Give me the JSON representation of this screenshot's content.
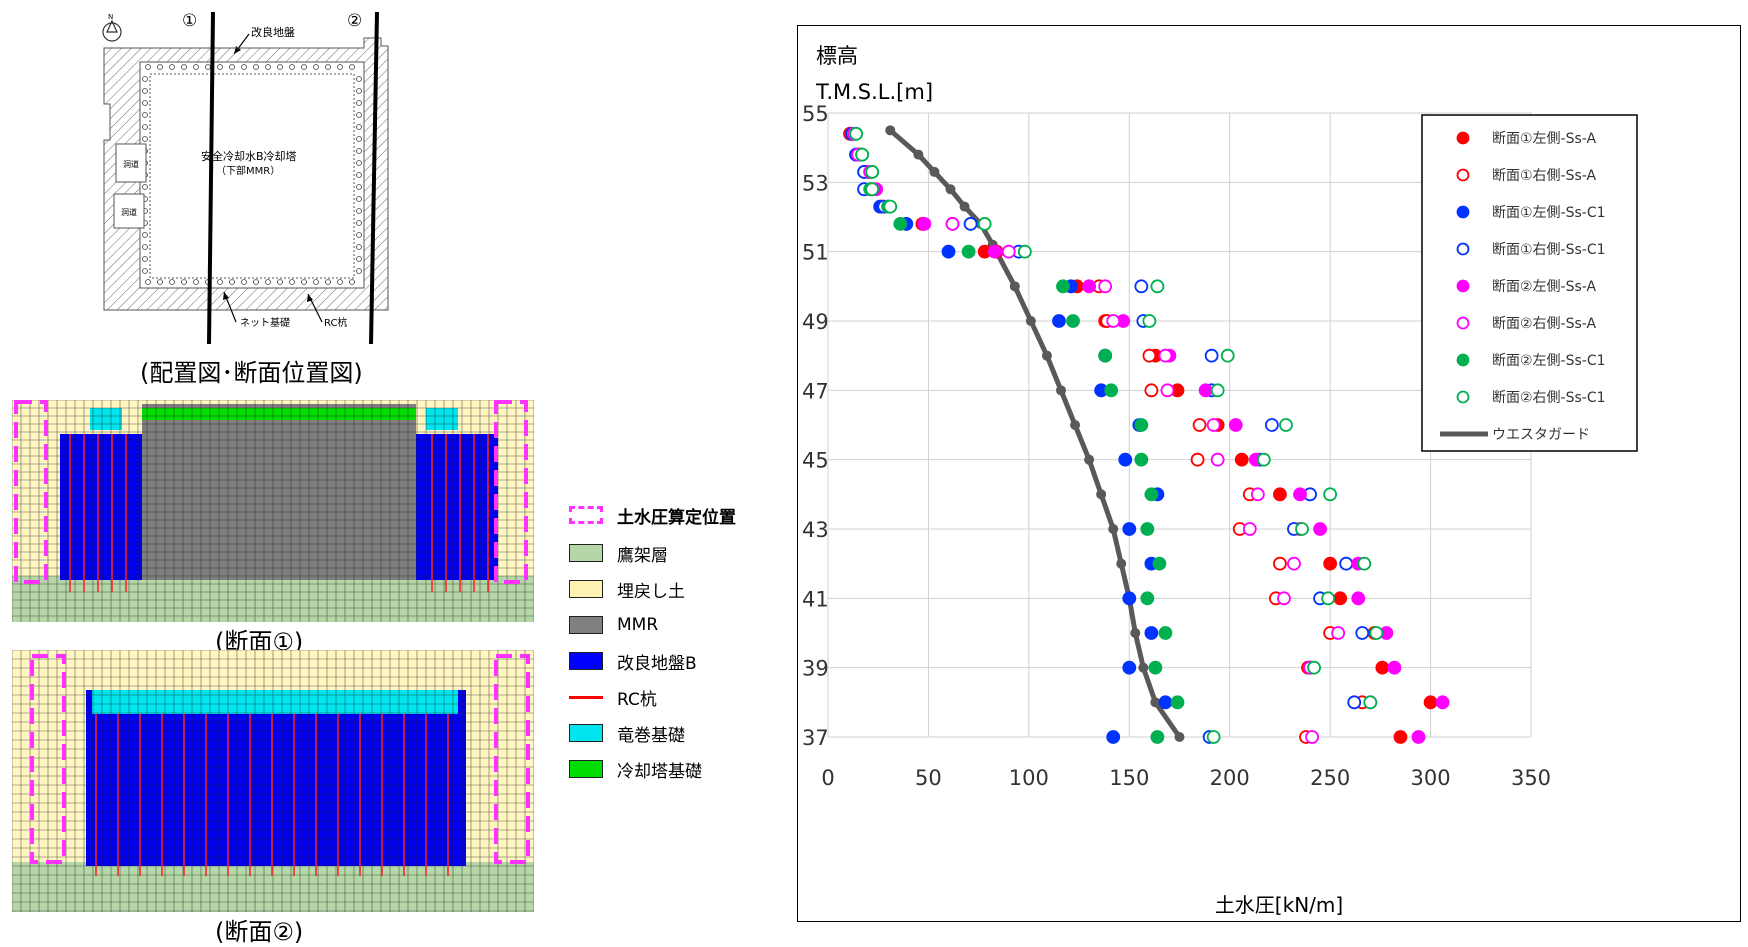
{
  "left_panel": {
    "plan": {
      "north_label": "N",
      "section1_marker": "①",
      "section2_marker": "②",
      "improved_ground_label": "改良地盤",
      "tower_label_line1": "安全冷却水B冷却塔",
      "tower_label_line2": "（下部MMR）",
      "passage_label_1": "洞道",
      "passage_label_2": "洞道",
      "net_foundation_label": "ネット基礎",
      "rc_pile_label": "RC杭",
      "caption": "(配置図･断面位置図)"
    },
    "section1_caption": "(断面①)",
    "section2_caption": "(断面②)",
    "legend": [
      {
        "label": "土水圧算定位置",
        "color": "#ff33ff",
        "kind": "dashed"
      },
      {
        "label": "鷹架層",
        "color": "#b5d6a7",
        "kind": "box"
      },
      {
        "label": "埋戻し土",
        "color": "#fff2b3",
        "kind": "box"
      },
      {
        "label": "MMR",
        "color": "#808080",
        "kind": "box"
      },
      {
        "label": "改良地盤B",
        "color": "#0000ff",
        "kind": "box"
      },
      {
        "label": "RC杭",
        "color": "#ff0000",
        "kind": "line"
      },
      {
        "label": "竜巻基礎",
        "color": "#00e5ee",
        "kind": "box"
      },
      {
        "label": "冷却塔基礎",
        "color": "#00dd00",
        "kind": "box"
      }
    ]
  },
  "chart_data": {
    "type": "scatter",
    "title": "",
    "ylabel_line1": "標高",
    "ylabel_line2": "T.M.S.L.[m]",
    "xlabel": "土水圧[kN/m]",
    "xlim": [
      0,
      350
    ],
    "ylim": [
      37,
      55
    ],
    "xticks": [
      0,
      50,
      100,
      150,
      200,
      250,
      300,
      350
    ],
    "yticks": [
      37,
      39,
      41,
      43,
      45,
      47,
      49,
      51,
      53,
      55
    ],
    "grid": true,
    "legend_position": "top-right",
    "series": [
      {
        "name": "断面①左側-Ss-A",
        "color": "#ff0000",
        "filled": true,
        "points": [
          [
            11,
            54.4
          ],
          [
            16,
            53.8
          ],
          [
            20,
            53.3
          ],
          [
            21,
            52.8
          ],
          [
            26,
            52.3
          ],
          [
            47,
            51.8
          ],
          [
            78,
            51.0
          ],
          [
            124,
            50.0
          ],
          [
            138,
            49.0
          ],
          [
            163,
            48.0
          ],
          [
            174,
            47.0
          ],
          [
            194,
            46.0
          ],
          [
            206,
            45.0
          ],
          [
            225,
            44.0
          ],
          [
            235,
            43.0
          ],
          [
            250,
            42.0
          ],
          [
            255,
            41.0
          ],
          [
            272,
            40.0
          ],
          [
            276,
            39.0
          ],
          [
            300,
            38.0
          ],
          [
            285,
            37.0
          ]
        ]
      },
      {
        "name": "断面①右側-Ss-A",
        "color": "#ff0000",
        "filled": false,
        "points": [
          [
            11,
            54.4
          ],
          [
            16,
            53.8
          ],
          [
            20,
            53.3
          ],
          [
            22,
            52.8
          ],
          [
            27,
            52.3
          ],
          [
            62,
            51.8
          ],
          [
            84,
            51.0
          ],
          [
            135,
            50.0
          ],
          [
            139,
            49.0
          ],
          [
            160,
            48.0
          ],
          [
            161,
            47.0
          ],
          [
            185,
            46.0
          ],
          [
            184,
            45.0
          ],
          [
            210,
            44.0
          ],
          [
            205,
            43.0
          ],
          [
            225,
            42.0
          ],
          [
            223,
            41.0
          ],
          [
            250,
            40.0
          ],
          [
            239,
            39.0
          ],
          [
            266,
            38.0
          ],
          [
            238,
            37.0
          ]
        ]
      },
      {
        "name": "断面①左側-Ss-C1",
        "color": "#0033ff",
        "filled": true,
        "points": [
          [
            12,
            54.4
          ],
          [
            14,
            53.8
          ],
          [
            18,
            53.3
          ],
          [
            18,
            52.8
          ],
          [
            26,
            52.3
          ],
          [
            39,
            51.8
          ],
          [
            60,
            51.0
          ],
          [
            121,
            50.0
          ],
          [
            115,
            49.0
          ],
          [
            138,
            48.0
          ],
          [
            136,
            47.0
          ],
          [
            155,
            46.0
          ],
          [
            148,
            45.0
          ],
          [
            164,
            44.0
          ],
          [
            150,
            43.0
          ],
          [
            161,
            42.0
          ],
          [
            150,
            41.0
          ],
          [
            161,
            40.0
          ],
          [
            150,
            39.0
          ],
          [
            168,
            38.0
          ],
          [
            142,
            37.0
          ]
        ]
      },
      {
        "name": "断面①右側-Ss-C1",
        "color": "#0033ff",
        "filled": false,
        "points": [
          [
            12,
            54.4
          ],
          [
            14,
            53.8
          ],
          [
            18,
            53.3
          ],
          [
            18,
            52.8
          ],
          [
            28,
            52.3
          ],
          [
            71,
            51.8
          ],
          [
            95,
            51.0
          ],
          [
            156,
            50.0
          ],
          [
            157,
            49.0
          ],
          [
            191,
            48.0
          ],
          [
            191,
            47.0
          ],
          [
            221,
            46.0
          ],
          [
            215,
            45.0
          ],
          [
            240,
            44.0
          ],
          [
            232,
            43.0
          ],
          [
            258,
            42.0
          ],
          [
            245,
            41.0
          ],
          [
            266,
            40.0
          ],
          [
            240,
            39.0
          ],
          [
            262,
            38.0
          ],
          [
            190,
            37.0
          ]
        ]
      },
      {
        "name": "断面②左側-Ss-A",
        "color": "#ff00ff",
        "filled": true,
        "points": [
          [
            13,
            54.4
          ],
          [
            15,
            53.8
          ],
          [
            21,
            53.3
          ],
          [
            24,
            52.8
          ],
          [
            30,
            52.3
          ],
          [
            48,
            51.8
          ],
          [
            83,
            51.0
          ],
          [
            130,
            50.0
          ],
          [
            147,
            49.0
          ],
          [
            170,
            48.0
          ],
          [
            188,
            47.0
          ],
          [
            203,
            46.0
          ],
          [
            213,
            45.0
          ],
          [
            235,
            44.0
          ],
          [
            245,
            43.0
          ],
          [
            264,
            42.0
          ],
          [
            264,
            41.0
          ],
          [
            278,
            40.0
          ],
          [
            282,
            39.0
          ],
          [
            306,
            38.0
          ],
          [
            294,
            37.0
          ]
        ]
      },
      {
        "name": "断面②右側-Ss-A",
        "color": "#ff00ff",
        "filled": false,
        "points": [
          [
            13,
            54.4
          ],
          [
            15,
            53.8
          ],
          [
            21,
            53.3
          ],
          [
            22,
            52.8
          ],
          [
            30,
            52.3
          ],
          [
            62,
            51.8
          ],
          [
            90,
            51.0
          ],
          [
            138,
            50.0
          ],
          [
            142,
            49.0
          ],
          [
            168,
            48.0
          ],
          [
            169,
            47.0
          ],
          [
            192,
            46.0
          ],
          [
            194,
            45.0
          ],
          [
            214,
            44.0
          ],
          [
            210,
            43.0
          ],
          [
            232,
            42.0
          ],
          [
            227,
            41.0
          ],
          [
            254,
            40.0
          ],
          [
            240,
            39.0
          ],
          [
            270,
            38.0
          ],
          [
            241,
            37.0
          ]
        ]
      },
      {
        "name": "断面②左側-Ss-C1",
        "color": "#00b050",
        "filled": true,
        "points": [
          [
            14,
            54.4
          ],
          [
            17,
            53.8
          ],
          [
            22,
            53.3
          ],
          [
            21,
            52.8
          ],
          [
            30,
            52.3
          ],
          [
            36,
            51.8
          ],
          [
            70,
            51.0
          ],
          [
            117,
            50.0
          ],
          [
            122,
            49.0
          ],
          [
            138,
            48.0
          ],
          [
            141,
            47.0
          ],
          [
            156,
            46.0
          ],
          [
            156,
            45.0
          ],
          [
            161,
            44.0
          ],
          [
            159,
            43.0
          ],
          [
            165,
            42.0
          ],
          [
            159,
            41.0
          ],
          [
            168,
            40.0
          ],
          [
            163,
            39.0
          ],
          [
            174,
            38.0
          ],
          [
            164,
            37.0
          ]
        ]
      },
      {
        "name": "断面②右側-Ss-C1",
        "color": "#00b050",
        "filled": false,
        "points": [
          [
            14,
            54.4
          ],
          [
            17,
            53.8
          ],
          [
            22,
            53.3
          ],
          [
            22,
            52.8
          ],
          [
            31,
            52.3
          ],
          [
            78,
            51.8
          ],
          [
            98,
            51.0
          ],
          [
            164,
            50.0
          ],
          [
            160,
            49.0
          ],
          [
            199,
            48.0
          ],
          [
            194,
            47.0
          ],
          [
            228,
            46.0
          ],
          [
            217,
            45.0
          ],
          [
            250,
            44.0
          ],
          [
            236,
            43.0
          ],
          [
            267,
            42.0
          ],
          [
            249,
            41.0
          ],
          [
            273,
            40.0
          ],
          [
            242,
            39.0
          ],
          [
            270,
            38.0
          ],
          [
            192,
            37.0
          ]
        ]
      }
    ],
    "line_series": {
      "name": "ウエスタガード",
      "color": "#595959",
      "points": [
        [
          31,
          54.5
        ],
        [
          45,
          53.8
        ],
        [
          53,
          53.3
        ],
        [
          61,
          52.8
        ],
        [
          68,
          52.3
        ],
        [
          76,
          51.8
        ],
        [
          82,
          51.2
        ],
        [
          93,
          50.0
        ],
        [
          101,
          49.0
        ],
        [
          109,
          48.0
        ],
        [
          116,
          47.0
        ],
        [
          123,
          46.0
        ],
        [
          130,
          45.0
        ],
        [
          136,
          44.0
        ],
        [
          142,
          43.0
        ],
        [
          146,
          42.0
        ],
        [
          150,
          41.0
        ],
        [
          153,
          40.0
        ],
        [
          157,
          39.0
        ],
        [
          163,
          38.0
        ],
        [
          175,
          37.0
        ]
      ]
    }
  }
}
